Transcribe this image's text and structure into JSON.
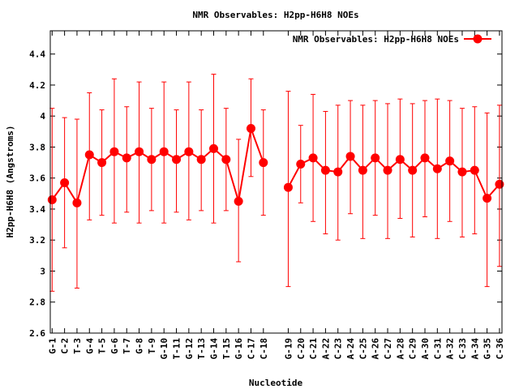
{
  "chart_data": {
    "type": "line",
    "title": "NMR Observables: H2pp-H6H8 NOEs",
    "xlabel": "Nucleotide",
    "ylabel": "H2pp-H6H8 (Angstroms)",
    "ylim": [
      2.6,
      4.55
    ],
    "yticks": [
      "2.6",
      "2.8",
      "3",
      "3.2",
      "3.4",
      "3.6",
      "3.8",
      "4",
      "4.2",
      "4.4"
    ],
    "ytick_values": [
      2.6,
      2.8,
      3.0,
      3.2,
      3.4,
      3.6,
      3.8,
      4.0,
      4.2,
      4.4
    ],
    "xlim": [
      -0.15,
      36.2
    ],
    "grid": false,
    "legend": {
      "position": "top-right",
      "entries": [
        "NMR Observables: H2pp-H6H8 NOEs"
      ]
    },
    "color": "#ff0000",
    "categories": [
      "G-1",
      "C-2",
      "T-3",
      "G-4",
      "T-5",
      "G-6",
      "T-7",
      "G-8",
      "T-9",
      "G-10",
      "T-11",
      "G-12",
      "T-13",
      "G-14",
      "T-15",
      "G-16",
      "C-17",
      "C-18",
      "G-19",
      "C-20",
      "C-21",
      "A-22",
      "C-23",
      "A-24",
      "C-25",
      "A-26",
      "C-27",
      "A-28",
      "C-29",
      "A-30",
      "C-31",
      "A-32",
      "C-33",
      "A-34",
      "G-35",
      "C-36"
    ],
    "x": [
      0,
      1,
      2,
      3,
      4,
      5,
      6,
      7,
      8,
      9,
      10,
      11,
      12,
      13,
      14,
      15,
      16,
      17,
      19,
      20,
      21,
      22,
      23,
      24,
      25,
      26,
      27,
      28,
      29,
      30,
      31,
      32,
      33,
      34,
      35,
      36
    ],
    "series": [
      {
        "name": "NMR Observables: H2pp-H6H8 NOEs",
        "values": [
          3.46,
          3.57,
          3.44,
          3.75,
          3.7,
          3.77,
          3.73,
          3.77,
          3.72,
          3.77,
          3.72,
          3.77,
          3.72,
          3.79,
          3.72,
          3.45,
          3.92,
          3.7,
          3.54,
          3.69,
          3.73,
          3.65,
          3.64,
          3.74,
          3.65,
          3.73,
          3.65,
          3.72,
          3.65,
          3.73,
          3.66,
          3.71,
          3.64,
          3.65,
          3.47,
          3.56
        ],
        "err_high": [
          4.05,
          3.99,
          3.98,
          4.15,
          4.04,
          4.24,
          4.06,
          4.22,
          4.05,
          4.22,
          4.04,
          4.22,
          4.04,
          4.27,
          4.05,
          3.85,
          4.24,
          4.04,
          4.16,
          3.94,
          4.14,
          4.03,
          4.07,
          4.1,
          4.07,
          4.1,
          4.08,
          4.11,
          4.08,
          4.1,
          4.11,
          4.1,
          4.05,
          4.06,
          4.02,
          4.07
        ],
        "err_low": [
          2.87,
          3.15,
          2.89,
          3.33,
          3.36,
          3.31,
          3.38,
          3.31,
          3.39,
          3.31,
          3.38,
          3.33,
          3.39,
          3.31,
          3.39,
          3.06,
          3.61,
          3.36,
          2.9,
          3.44,
          3.32,
          3.24,
          3.2,
          3.37,
          3.21,
          3.36,
          3.21,
          3.34,
          3.22,
          3.35,
          3.21,
          3.32,
          3.22,
          3.24,
          2.9,
          3.03
        ]
      }
    ]
  }
}
